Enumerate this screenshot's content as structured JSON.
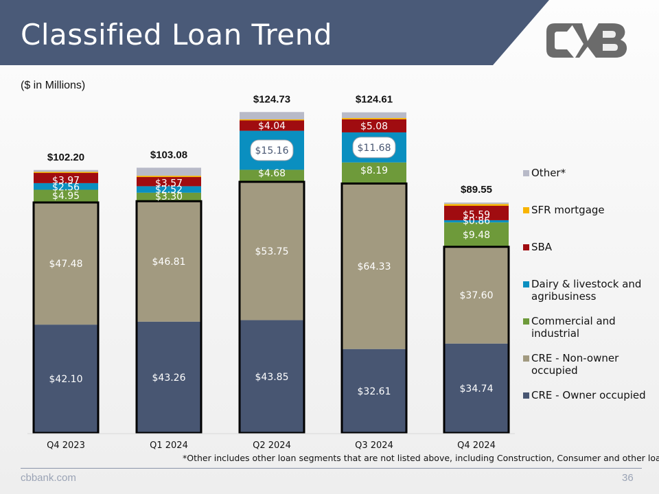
{
  "slide": {
    "title": "Classified Loan Trend",
    "units_note": "($ in Millions)",
    "footnote": "*Other includes other loan segments that are not listed above, including Construction, Consumer and other loans.",
    "footer_site": "cbbank.com",
    "page_number": "36",
    "logo_icon": "cvb-logo-icon"
  },
  "colors": {
    "header": "#4a5a78",
    "owner_occupied": "#485672",
    "non_owner": "#a29a80",
    "ci": "#6e9a3a",
    "dairy": "#0a8fc0",
    "sba": "#a00c10",
    "sfr": "#f8b400",
    "other": "#b8bac8"
  },
  "chart_data": {
    "type": "bar",
    "stacked": true,
    "categories": [
      "Q4 2023",
      "Q1 2024",
      "Q2 2024",
      "Q3 2024",
      "Q4 2024"
    ],
    "totals": [
      "$102.20",
      "$103.08",
      "$124.73",
      "$124.61",
      "$89.55"
    ],
    "series": [
      {
        "key": "cre_owner",
        "name": "CRE - Owner occupied",
        "color": "#485672",
        "values": [
          42.1,
          43.26,
          43.85,
          32.61,
          34.74
        ],
        "labels": [
          "$42.10",
          "$43.26",
          "$43.85",
          "$32.61",
          "$34.74"
        ]
      },
      {
        "key": "cre_non_owner",
        "name": "CRE - Non-owner occupied",
        "color": "#a29a80",
        "values": [
          47.48,
          46.81,
          53.75,
          64.33,
          37.6
        ],
        "labels": [
          "$47.48",
          "$46.81",
          "$53.75",
          "$64.33",
          "$37.60"
        ]
      },
      {
        "key": "ci",
        "name": "Commercial and industrial",
        "color": "#6e9a3a",
        "values": [
          4.95,
          3.3,
          4.68,
          8.19,
          9.48
        ],
        "labels": [
          "$4.95",
          "$3.30",
          "$4.68",
          "$8.19",
          "$9.48"
        ]
      },
      {
        "key": "dairy",
        "name": "Dairy & livestock and agribusiness",
        "color": "#0a8fc0",
        "values": [
          2.56,
          2.52,
          15.16,
          11.68,
          0.86
        ],
        "labels": [
          "$2.56",
          "$2.52",
          "$15.16",
          "$11.68",
          "$0.86"
        ]
      },
      {
        "key": "sba",
        "name": "SBA",
        "color": "#a00c10",
        "values": [
          3.97,
          3.57,
          4.04,
          5.08,
          5.59
        ],
        "labels": [
          "$3.97",
          "$3.57",
          "$4.04",
          "$5.08",
          "$5.59"
        ]
      },
      {
        "key": "sfr",
        "name": "SFR mortgage",
        "color": "#f8b400",
        "values": [
          0.4,
          0.5,
          0.4,
          0.5,
          0.7
        ],
        "labels": [
          "",
          "",
          "",
          "",
          ""
        ]
      },
      {
        "key": "other",
        "name": "Other*",
        "color": "#b8bac8",
        "values": [
          0.74,
          3.12,
          2.85,
          2.22,
          0.58
        ],
        "labels": [
          "",
          "",
          "",
          "",
          ""
        ]
      }
    ],
    "legend_order": [
      "other",
      "sfr",
      "sba",
      "dairy",
      "ci",
      "cre_non_owner",
      "cre_owner"
    ],
    "legend_position": "right",
    "ylim": [
      0,
      130
    ],
    "grid": false,
    "outlined_segment": "cre_non_owner and cre_owner combined"
  }
}
